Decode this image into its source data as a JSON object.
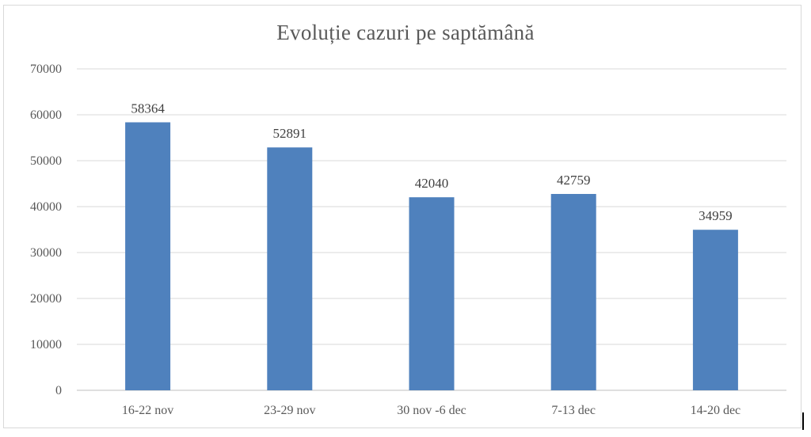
{
  "chart_data": {
    "type": "bar",
    "title": "Evoluție cazuri pe saptămână",
    "xlabel": "",
    "ylabel": "",
    "categories": [
      "16-22 nov",
      "23-29 nov",
      "30 nov -6 dec",
      "7-13 dec",
      "14-20 dec"
    ],
    "values": [
      58364,
      52891,
      42040,
      42759,
      34959
    ],
    "data_labels": [
      "58364",
      "52891",
      "42040",
      "42759",
      "34959"
    ],
    "ylim": [
      0,
      70000
    ],
    "yticks": [
      0,
      10000,
      20000,
      30000,
      40000,
      50000,
      60000,
      70000
    ],
    "ytick_labels": [
      "0",
      "10000",
      "20000",
      "30000",
      "40000",
      "50000",
      "60000",
      "70000"
    ],
    "grid": true,
    "legend": "none",
    "colors": {
      "bar": "#4f81bd",
      "grid": "#d9d9d9",
      "axis": "#bfbfbf",
      "text": "#595959"
    }
  }
}
